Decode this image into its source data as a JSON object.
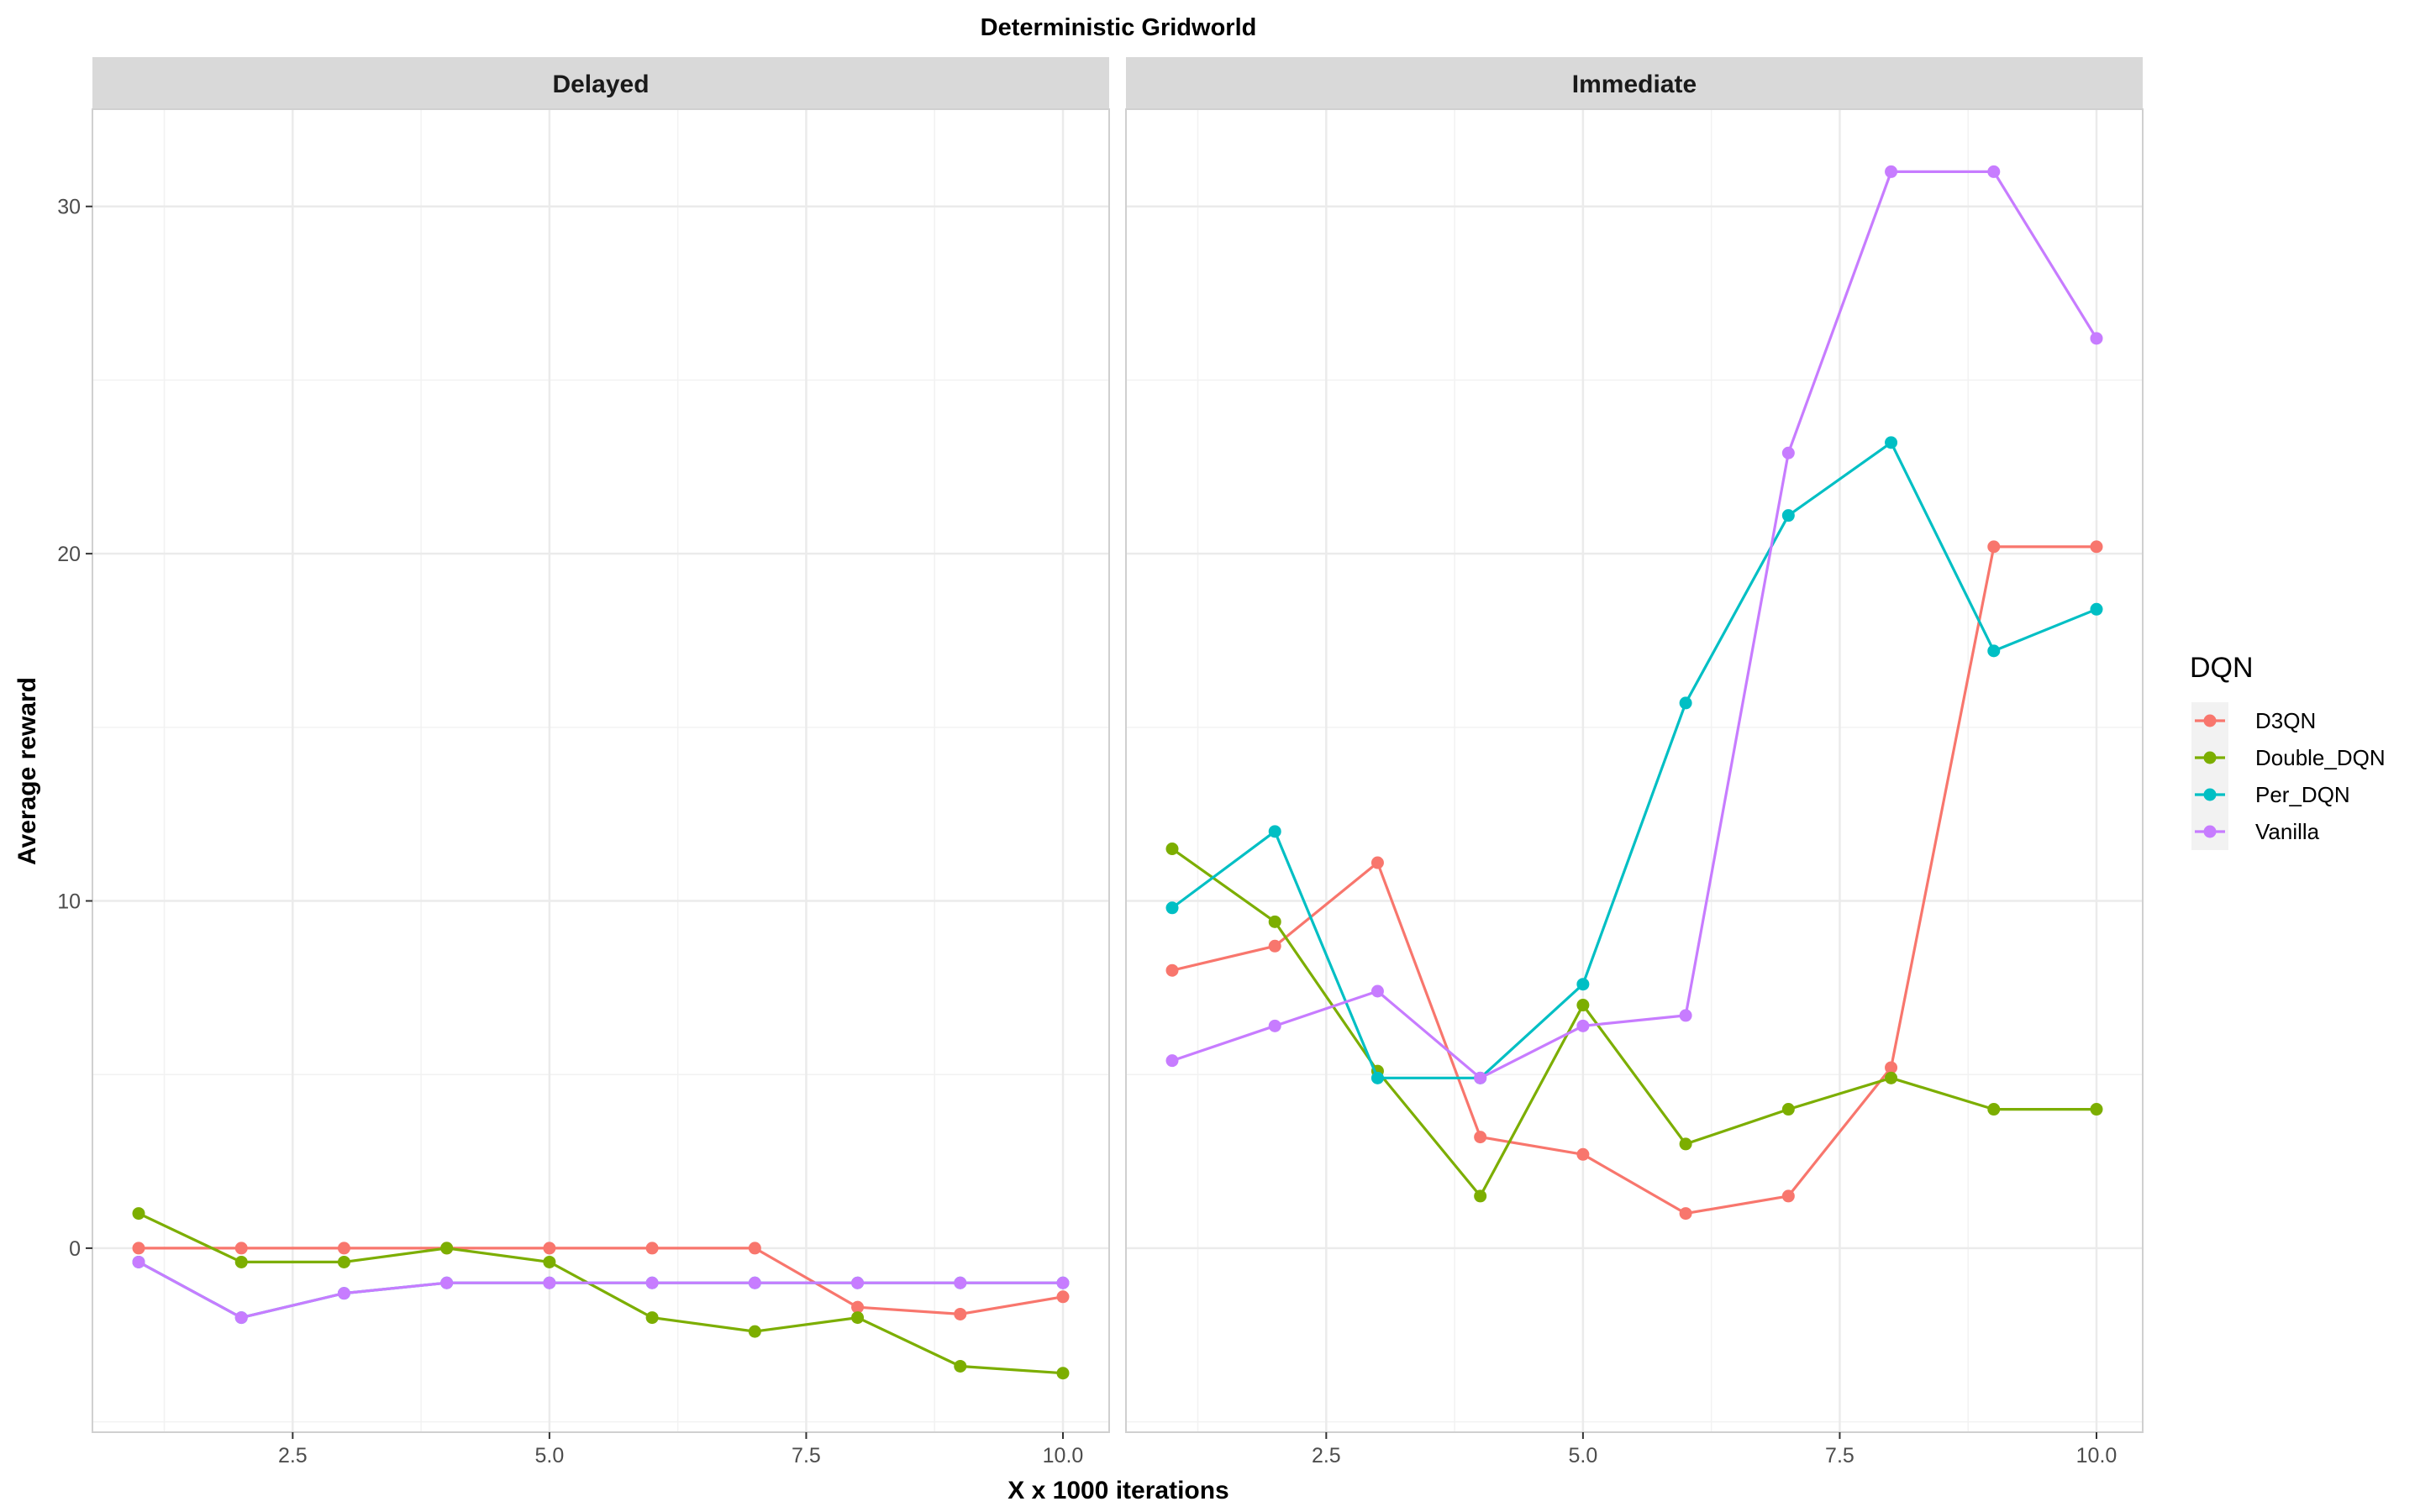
{
  "chart_data": {
    "type": "line",
    "title": "Deterministic Gridworld",
    "xlabel": "X x 1000 iterations",
    "ylabel": "Average reward",
    "xlim": [
      0.55,
      10.45
    ],
    "ylim": [
      -5.3,
      32.8
    ],
    "x_ticks": [
      "2.5",
      "5.0",
      "7.5",
      "10.0"
    ],
    "x_tick_values": [
      2.5,
      5.0,
      7.5,
      10.0
    ],
    "y_ticks": [
      "0",
      "10",
      "20",
      "30"
    ],
    "y_tick_values": [
      0,
      10,
      20,
      30
    ],
    "grid": true,
    "legend": {
      "title": "DQN",
      "placement": "right"
    },
    "series_colors": {
      "D3QN": "#F8766D",
      "Double_DQN": "#7CAE00",
      "Per_DQN": "#00BFC4",
      "Vanilla": "#C77CFF"
    },
    "x": [
      1,
      2,
      3,
      4,
      5,
      6,
      7,
      8,
      9,
      10
    ],
    "panels": [
      {
        "name": "Delayed",
        "series": [
          {
            "name": "D3QN",
            "values": [
              0,
              0,
              0,
              0,
              0,
              0,
              0,
              -1.7,
              -1.9,
              -1.4
            ]
          },
          {
            "name": "Double_DQN",
            "values": [
              1.0,
              -0.4,
              -0.4,
              0,
              -0.4,
              -2.0,
              -2.4,
              -2.0,
              -3.4,
              -3.6
            ]
          },
          {
            "name": "Per_DQN",
            "values": [
              -0.4,
              -2.0,
              -1.3,
              -1.0,
              -1.0,
              -1.0,
              -1.0,
              -1.0,
              -1.0,
              -1.0
            ]
          },
          {
            "name": "Vanilla",
            "values": [
              -0.4,
              -2.0,
              -1.3,
              -1.0,
              -1.0,
              -1.0,
              -1.0,
              -1.0,
              -1.0,
              -1.0
            ]
          }
        ]
      },
      {
        "name": "Immediate",
        "series": [
          {
            "name": "D3QN",
            "values": [
              8.0,
              8.7,
              11.1,
              3.2,
              2.7,
              1.0,
              1.5,
              5.2,
              20.2,
              20.2
            ]
          },
          {
            "name": "Double_DQN",
            "values": [
              11.5,
              9.4,
              5.1,
              1.5,
              7.0,
              3.0,
              4.0,
              4.9,
              4.0,
              4.0
            ]
          },
          {
            "name": "Per_DQN",
            "values": [
              9.8,
              12.0,
              4.9,
              4.9,
              7.6,
              15.7,
              21.1,
              23.2,
              17.2,
              18.4
            ]
          },
          {
            "name": "Vanilla",
            "values": [
              5.4,
              6.4,
              7.4,
              4.9,
              6.4,
              6.7,
              22.9,
              31.0,
              31.0,
              26.2
            ]
          }
        ]
      }
    ]
  }
}
